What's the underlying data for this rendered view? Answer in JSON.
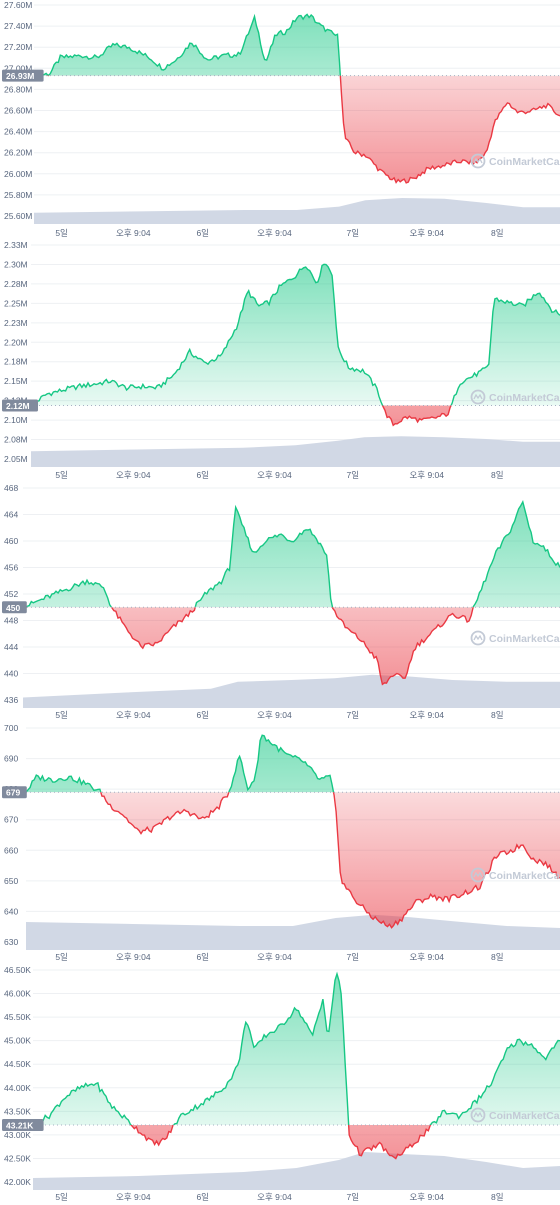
{
  "watermark": "CoinMarketCap",
  "colors": {
    "up": "#16c784",
    "down": "#ea3943",
    "volume": "#cfd6e4",
    "grid": "#eef0f3",
    "axis_text": "#58667e",
    "badge": "#808a9d"
  },
  "x_labels": [
    "5일",
    "오후 9:04",
    "6일",
    "오후 9:04",
    "7일",
    "오후 9:04",
    "8일"
  ],
  "chart_data": [
    {
      "type": "area",
      "current_label": "26.93M",
      "baseline": 26.93,
      "y_ticks": [
        "27.60M",
        "27.40M",
        "27.20M",
        "27.00M",
        "26.80M",
        "26.60M",
        "26.40M",
        "26.20M",
        "26.00M",
        "25.80M",
        "25.60M"
      ],
      "ylim": [
        25.6,
        27.6
      ],
      "keypoints": [
        [
          0,
          26.93
        ],
        [
          0.03,
          26.95
        ],
        [
          0.05,
          27.1
        ],
        [
          0.09,
          27.12
        ],
        [
          0.12,
          27.1
        ],
        [
          0.15,
          27.22
        ],
        [
          0.18,
          27.2
        ],
        [
          0.22,
          27.1
        ],
        [
          0.245,
          27.0
        ],
        [
          0.27,
          27.08
        ],
        [
          0.3,
          27.25
        ],
        [
          0.33,
          27.08
        ],
        [
          0.36,
          27.12
        ],
        [
          0.39,
          27.13
        ],
        [
          0.405,
          27.3
        ],
        [
          0.42,
          27.48
        ],
        [
          0.44,
          27.05
        ],
        [
          0.46,
          27.32
        ],
        [
          0.48,
          27.35
        ],
        [
          0.5,
          27.48
        ],
        [
          0.525,
          27.5
        ],
        [
          0.545,
          27.4
        ],
        [
          0.56,
          27.35
        ],
        [
          0.578,
          27.3
        ],
        [
          0.583,
          26.9
        ],
        [
          0.59,
          26.35
        ],
        [
          0.61,
          26.2
        ],
        [
          0.63,
          26.18
        ],
        [
          0.66,
          26.02
        ],
        [
          0.69,
          25.92
        ],
        [
          0.72,
          25.95
        ],
        [
          0.75,
          26.05
        ],
        [
          0.78,
          26.08
        ],
        [
          0.81,
          26.12
        ],
        [
          0.84,
          26.1
        ],
        [
          0.86,
          26.2
        ],
        [
          0.875,
          26.48
        ],
        [
          0.9,
          26.68
        ],
        [
          0.92,
          26.58
        ],
        [
          0.95,
          26.6
        ],
        [
          0.975,
          26.65
        ],
        [
          1.0,
          26.55
        ]
      ],
      "volume": [
        [
          0,
          0.4
        ],
        [
          0.2,
          0.45
        ],
        [
          0.4,
          0.5
        ],
        [
          0.5,
          0.5
        ],
        [
          0.58,
          0.62
        ],
        [
          0.63,
          0.85
        ],
        [
          0.7,
          0.93
        ],
        [
          0.78,
          0.9
        ],
        [
          0.86,
          0.75
        ],
        [
          0.93,
          0.6
        ],
        [
          1.0,
          0.6
        ]
      ]
    },
    {
      "type": "area",
      "current_label": "2.12M",
      "baseline": 2.12,
      "y_ticks": [
        "2.33M",
        "2.30M",
        "2.28M",
        "2.25M",
        "2.23M",
        "2.20M",
        "2.18M",
        "2.15M",
        "2.13M",
        "2.10M",
        "2.08M",
        "2.05M"
      ],
      "ylim": [
        2.05,
        2.33
      ],
      "keypoints": [
        [
          0,
          2.12
        ],
        [
          0.03,
          2.135
        ],
        [
          0.06,
          2.14
        ],
        [
          0.09,
          2.145
        ],
        [
          0.12,
          2.148
        ],
        [
          0.15,
          2.152
        ],
        [
          0.18,
          2.143
        ],
        [
          0.21,
          2.145
        ],
        [
          0.24,
          2.143
        ],
        [
          0.27,
          2.16
        ],
        [
          0.3,
          2.19
        ],
        [
          0.33,
          2.175
        ],
        [
          0.36,
          2.185
        ],
        [
          0.39,
          2.225
        ],
        [
          0.41,
          2.27
        ],
        [
          0.43,
          2.25
        ],
        [
          0.45,
          2.255
        ],
        [
          0.47,
          2.275
        ],
        [
          0.5,
          2.29
        ],
        [
          0.52,
          2.305
        ],
        [
          0.54,
          2.28
        ],
        [
          0.555,
          2.31
        ],
        [
          0.57,
          2.29
        ],
        [
          0.58,
          2.195
        ],
        [
          0.6,
          2.17
        ],
        [
          0.63,
          2.165
        ],
        [
          0.655,
          2.14
        ],
        [
          0.67,
          2.11
        ],
        [
          0.685,
          2.095
        ],
        [
          0.71,
          2.105
        ],
        [
          0.74,
          2.1
        ],
        [
          0.77,
          2.105
        ],
        [
          0.79,
          2.11
        ],
        [
          0.81,
          2.15
        ],
        [
          0.84,
          2.16
        ],
        [
          0.865,
          2.17
        ],
        [
          0.875,
          2.26
        ],
        [
          0.9,
          2.255
        ],
        [
          0.93,
          2.25
        ],
        [
          0.96,
          2.27
        ],
        [
          0.985,
          2.245
        ],
        [
          1.0,
          2.238
        ]
      ],
      "volume": [
        [
          0,
          0.45
        ],
        [
          0.2,
          0.5
        ],
        [
          0.4,
          0.55
        ],
        [
          0.5,
          0.62
        ],
        [
          0.58,
          0.75
        ],
        [
          0.63,
          0.85
        ],
        [
          0.7,
          0.88
        ],
        [
          0.78,
          0.85
        ],
        [
          0.86,
          0.8
        ],
        [
          0.93,
          0.72
        ],
        [
          1.0,
          0.72
        ]
      ]
    },
    {
      "type": "area",
      "current_label": "450",
      "baseline": 450,
      "y_ticks": [
        "468",
        "464",
        "460",
        "456",
        "452",
        "448",
        "444",
        "440",
        "436"
      ],
      "ylim": [
        435,
        469
      ],
      "keypoints": [
        [
          0,
          450
        ],
        [
          0.03,
          451
        ],
        [
          0.06,
          452
        ],
        [
          0.09,
          453
        ],
        [
          0.12,
          454
        ],
        [
          0.15,
          453
        ],
        [
          0.165,
          450
        ],
        [
          0.19,
          447
        ],
        [
          0.22,
          444
        ],
        [
          0.25,
          444.5
        ],
        [
          0.28,
          447
        ],
        [
          0.31,
          449
        ],
        [
          0.34,
          452
        ],
        [
          0.37,
          454
        ],
        [
          0.385,
          456
        ],
        [
          0.395,
          465
        ],
        [
          0.41,
          462
        ],
        [
          0.43,
          458
        ],
        [
          0.45,
          460
        ],
        [
          0.48,
          461
        ],
        [
          0.5,
          460
        ],
        [
          0.53,
          462
        ],
        [
          0.55,
          460
        ],
        [
          0.565,
          458
        ],
        [
          0.575,
          450
        ],
        [
          0.6,
          447
        ],
        [
          0.63,
          445
        ],
        [
          0.66,
          442
        ],
        [
          0.67,
          438
        ],
        [
          0.69,
          440
        ],
        [
          0.71,
          439
        ],
        [
          0.73,
          444
        ],
        [
          0.76,
          446
        ],
        [
          0.8,
          449
        ],
        [
          0.83,
          448
        ],
        [
          0.86,
          454
        ],
        [
          0.88,
          458
        ],
        [
          0.91,
          462
        ],
        [
          0.93,
          466
        ],
        [
          0.95,
          460
        ],
        [
          0.97,
          459
        ],
        [
          1.0,
          456
        ]
      ],
      "volume": [
        [
          0,
          0.3
        ],
        [
          0.2,
          0.45
        ],
        [
          0.35,
          0.55
        ],
        [
          0.4,
          0.75
        ],
        [
          0.5,
          0.8
        ],
        [
          0.58,
          0.85
        ],
        [
          0.65,
          0.95
        ],
        [
          0.72,
          0.9
        ],
        [
          0.8,
          0.8
        ],
        [
          0.9,
          0.75
        ],
        [
          1.0,
          0.75
        ]
      ]
    },
    {
      "type": "area",
      "current_label": "679",
      "baseline": 679,
      "y_ticks": [
        "700",
        "690",
        "680",
        "670",
        "660",
        "650",
        "640",
        "630"
      ],
      "ylim": [
        625,
        704
      ],
      "keypoints": [
        [
          0,
          679
        ],
        [
          0.02,
          684
        ],
        [
          0.05,
          683
        ],
        [
          0.08,
          684
        ],
        [
          0.11,
          682
        ],
        [
          0.14,
          679
        ],
        [
          0.155,
          675
        ],
        [
          0.18,
          672
        ],
        [
          0.21,
          666
        ],
        [
          0.24,
          667
        ],
        [
          0.27,
          671
        ],
        [
          0.3,
          673
        ],
        [
          0.33,
          670
        ],
        [
          0.36,
          674
        ],
        [
          0.38,
          679
        ],
        [
          0.4,
          691
        ],
        [
          0.415,
          680
        ],
        [
          0.43,
          684
        ],
        [
          0.44,
          698
        ],
        [
          0.46,
          695
        ],
        [
          0.49,
          691
        ],
        [
          0.52,
          689
        ],
        [
          0.55,
          683
        ],
        [
          0.57,
          684
        ],
        [
          0.58,
          674
        ],
        [
          0.59,
          650
        ],
        [
          0.62,
          643
        ],
        [
          0.65,
          638
        ],
        [
          0.68,
          635
        ],
        [
          0.7,
          637
        ],
        [
          0.73,
          643
        ],
        [
          0.76,
          645
        ],
        [
          0.79,
          644
        ],
        [
          0.82,
          646
        ],
        [
          0.85,
          648
        ],
        [
          0.88,
          658
        ],
        [
          0.91,
          660
        ],
        [
          0.93,
          662
        ],
        [
          0.95,
          657
        ],
        [
          0.97,
          656
        ],
        [
          1.0,
          651
        ]
      ],
      "volume": [
        [
          0,
          0.7
        ],
        [
          0.2,
          0.65
        ],
        [
          0.4,
          0.6
        ],
        [
          0.5,
          0.6
        ],
        [
          0.58,
          0.8
        ],
        [
          0.65,
          0.88
        ],
        [
          0.72,
          0.82
        ],
        [
          0.8,
          0.72
        ],
        [
          0.9,
          0.6
        ],
        [
          1.0,
          0.55
        ]
      ]
    },
    {
      "type": "area",
      "current_label": "43.21K",
      "baseline": 43.21,
      "y_ticks": [
        "46.50K",
        "46.00K",
        "45.50K",
        "45.00K",
        "44.50K",
        "44.00K",
        "43.50K",
        "43.00K",
        "42.50K",
        "42.00K"
      ],
      "ylim": [
        41.65,
        46.7
      ],
      "keypoints": [
        [
          0,
          43.21
        ],
        [
          0.03,
          43.4
        ],
        [
          0.06,
          43.8
        ],
        [
          0.09,
          44.0
        ],
        [
          0.12,
          44.1
        ],
        [
          0.15,
          43.6
        ],
        [
          0.18,
          43.3
        ],
        [
          0.21,
          43.0
        ],
        [
          0.23,
          42.8
        ],
        [
          0.25,
          42.9
        ],
        [
          0.28,
          43.4
        ],
        [
          0.31,
          43.6
        ],
        [
          0.34,
          43.8
        ],
        [
          0.37,
          44.1
        ],
        [
          0.39,
          44.5
        ],
        [
          0.405,
          45.5
        ],
        [
          0.42,
          44.8
        ],
        [
          0.44,
          45.1
        ],
        [
          0.47,
          45.3
        ],
        [
          0.5,
          45.7
        ],
        [
          0.53,
          45.1
        ],
        [
          0.55,
          45.9
        ],
        [
          0.56,
          45.0
        ],
        [
          0.575,
          46.5
        ],
        [
          0.585,
          46.0
        ],
        [
          0.6,
          43.0
        ],
        [
          0.62,
          42.6
        ],
        [
          0.64,
          42.7
        ],
        [
          0.66,
          42.8
        ],
        [
          0.68,
          42.5
        ],
        [
          0.7,
          42.6
        ],
        [
          0.72,
          42.8
        ],
        [
          0.75,
          43.1
        ],
        [
          0.78,
          43.5
        ],
        [
          0.81,
          43.4
        ],
        [
          0.84,
          43.7
        ],
        [
          0.87,
          44.1
        ],
        [
          0.9,
          44.8
        ],
        [
          0.92,
          45.0
        ],
        [
          0.95,
          44.9
        ],
        [
          0.97,
          44.6
        ],
        [
          1.0,
          45.0
        ]
      ],
      "volume": [
        [
          0,
          0.3
        ],
        [
          0.2,
          0.35
        ],
        [
          0.4,
          0.45
        ],
        [
          0.5,
          0.55
        ],
        [
          0.58,
          0.75
        ],
        [
          0.63,
          0.95
        ],
        [
          0.7,
          0.9
        ],
        [
          0.78,
          0.85
        ],
        [
          0.86,
          0.7
        ],
        [
          0.93,
          0.55
        ],
        [
          1.0,
          0.6
        ]
      ]
    }
  ]
}
